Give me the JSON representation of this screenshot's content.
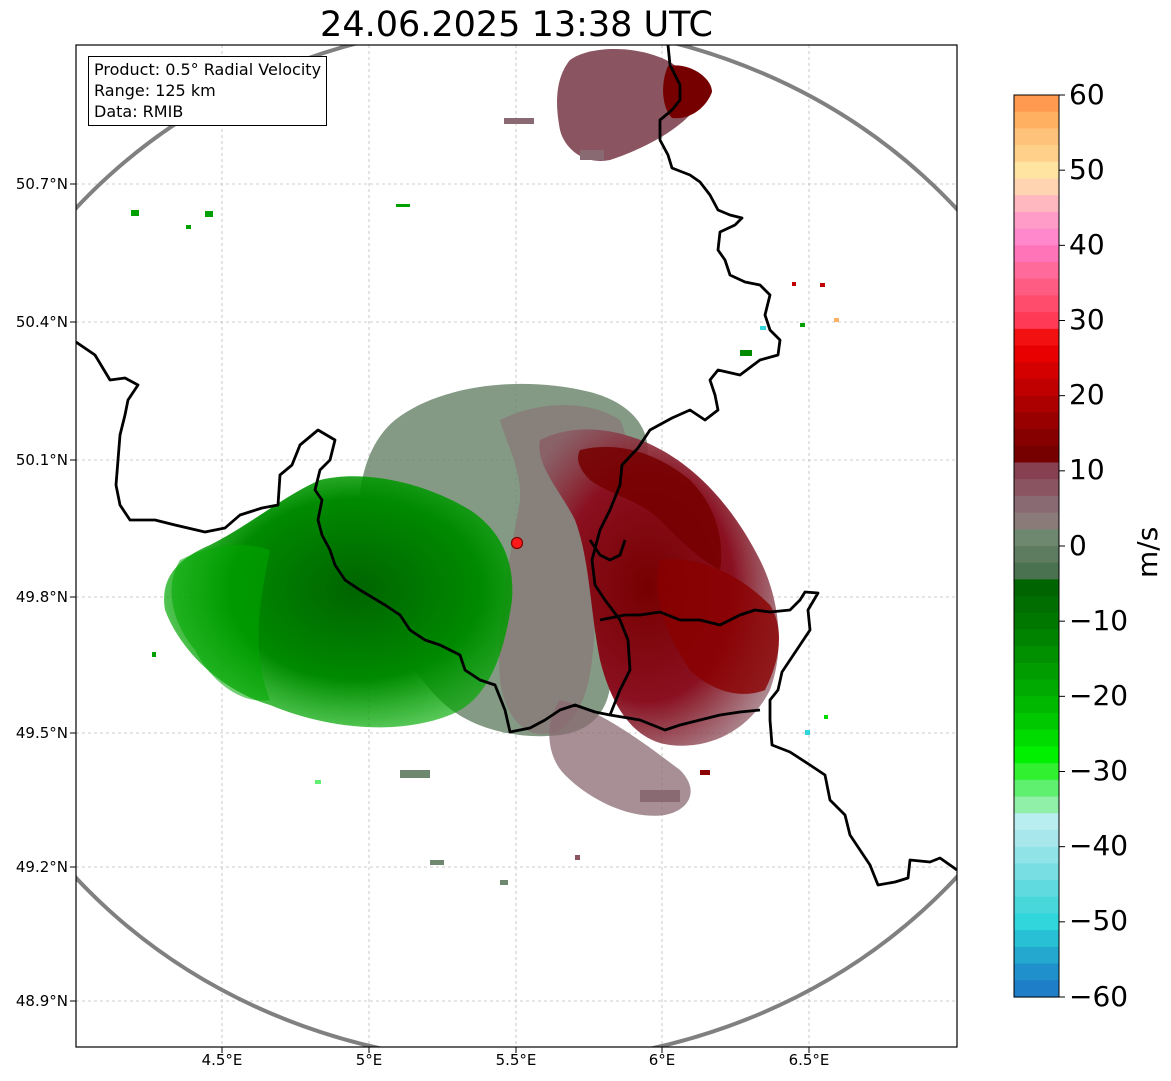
{
  "title": "24.06.2025 13:38 UTC",
  "info": {
    "product": "Product: 0.5° Radial Velocity",
    "range": "Range: 125 km",
    "source": "Data: RMIB"
  },
  "axes": {
    "lat_ticks": [
      "50.7°N",
      "50.4°N",
      "50.1°N",
      "49.8°N",
      "49.5°N",
      "49.2°N",
      "48.9°N"
    ],
    "lon_ticks": [
      "4.5°E",
      "5°E",
      "5.5°E",
      "6°E",
      "6.5°E"
    ]
  },
  "colorbar": {
    "label": "m/s",
    "ticks": [
      "60",
      "50",
      "40",
      "30",
      "20",
      "10",
      "0",
      "−10",
      "−20",
      "−30",
      "−40",
      "−50",
      "−60"
    ],
    "colors": [
      "#ff9a50",
      "#ffb060",
      "#ffc27a",
      "#ffd08a",
      "#ffe3a0",
      "#ffd4b0",
      "#ffb8c0",
      "#ff9cc8",
      "#ff88cc",
      "#ff74b8",
      "#ff6a9a",
      "#ff5c84",
      "#ff4c6c",
      "#ff3a56",
      "#f21010",
      "#e80000",
      "#d40000",
      "#c00000",
      "#ac0000",
      "#980000",
      "#860000",
      "#760000",
      "#864050",
      "#8a5560",
      "#8a6a72",
      "#8a7a78",
      "#6e8870",
      "#5e7c60",
      "#4a7250",
      "#006400",
      "#006e00",
      "#007800",
      "#008400",
      "#009000",
      "#009c00",
      "#00aa00",
      "#00b800",
      "#00c800",
      "#00dc00",
      "#00f000",
      "#30f030",
      "#60f070",
      "#90f0a8",
      "#b8eef0",
      "#a8e8ec",
      "#90e4e8",
      "#78dee4",
      "#60dadf",
      "#48d8dc",
      "#30d6dc",
      "#28c0d4",
      "#24a8d0",
      "#2090cc",
      "#1e7ec8"
    ]
  },
  "radar_site": {
    "lon": 5.505,
    "lat": 49.914,
    "color": "#ff1a1a"
  },
  "map_extent": {
    "lon_min": 4.0,
    "lon_max": 7.0,
    "lat_min": 48.8,
    "lat_max": 50.98
  },
  "range_km": 125
}
